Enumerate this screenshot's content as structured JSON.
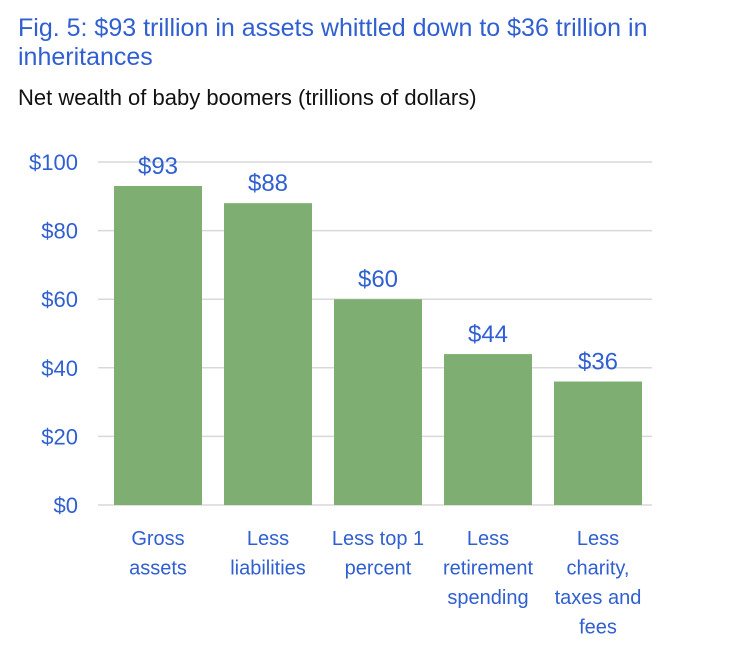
{
  "header": {
    "title": "Fig. 5: $93 trillion in assets whittled down to $36 trillion in inheritances",
    "subtitle": "Net wealth of baby boomers (trillions of dollars)"
  },
  "chart_data": {
    "type": "bar",
    "title": "Fig. 5: $93 trillion in assets whittled down to $36 trillion in inheritances",
    "subtitle": "Net wealth of baby boomers (trillions of dollars)",
    "xlabel": "",
    "ylabel": "",
    "categories": [
      [
        "Gross",
        "assets"
      ],
      [
        "Less",
        "liabilities"
      ],
      [
        "Less top 1",
        "percent"
      ],
      [
        "Less",
        "retirement",
        "spending"
      ],
      [
        "Less",
        "charity,",
        "taxes and",
        "fees"
      ]
    ],
    "values": [
      93,
      88,
      60,
      44,
      36
    ],
    "value_labels": [
      "$93",
      "$88",
      "$60",
      "$44",
      "$36"
    ],
    "ylim": [
      0,
      100
    ],
    "yticks": [
      0,
      20,
      40,
      60,
      80,
      100
    ],
    "ytick_labels": [
      "$0",
      "$20",
      "$40",
      "$60",
      "$80",
      "$100"
    ],
    "grid": true,
    "legend": "none",
    "colors": {
      "bar": "#7fae72",
      "text": "#2f5fd0",
      "grid": "#d9d9d9"
    }
  }
}
